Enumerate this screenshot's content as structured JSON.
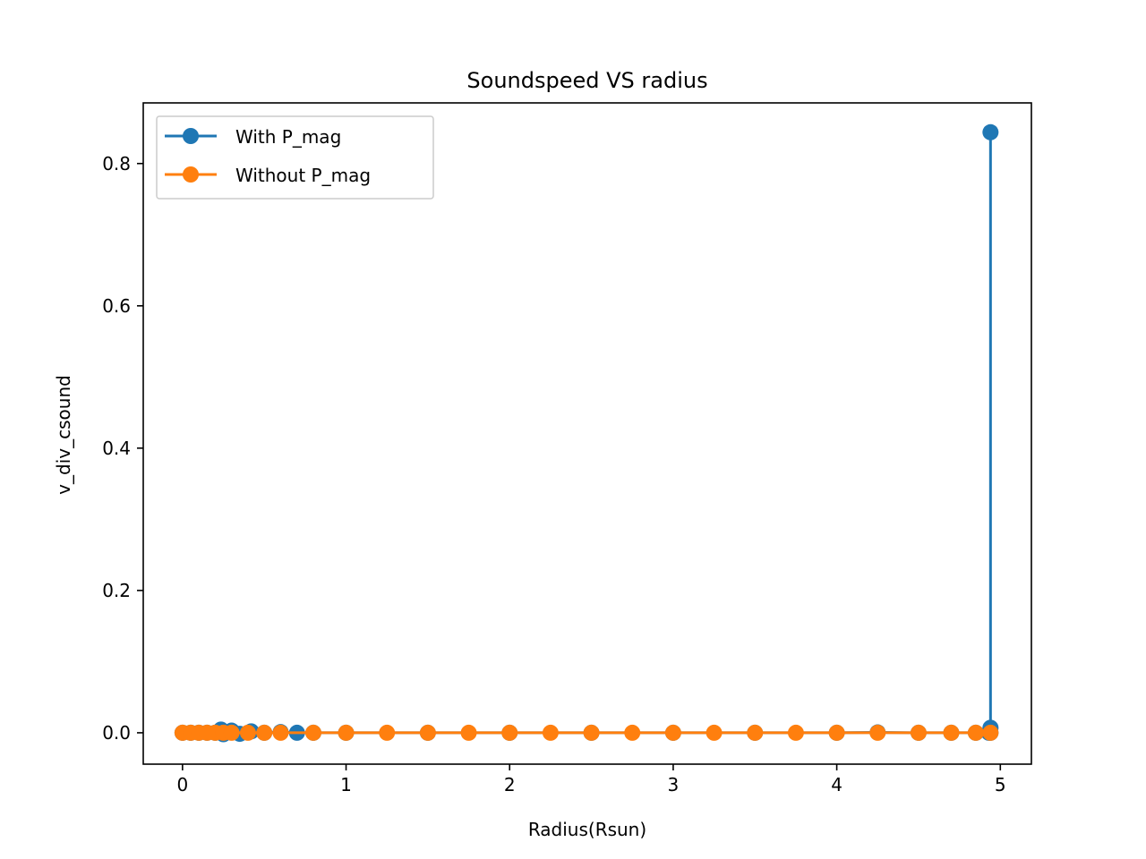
{
  "chart_data": {
    "type": "line",
    "title": "Soundspeed VS radius",
    "xlabel": "Radius(Rsun)",
    "ylabel": "v_div_csound",
    "xlim": [
      -0.24,
      5.19
    ],
    "ylim": [
      -0.0441,
      0.8852
    ],
    "x_ticks": [
      0,
      1,
      2,
      3,
      4,
      5
    ],
    "x_tick_labels": [
      "0",
      "1",
      "2",
      "3",
      "4",
      "5"
    ],
    "y_ticks": [
      0.0,
      0.2,
      0.4,
      0.6,
      0.8
    ],
    "y_tick_labels": [
      "0.0",
      "0.2",
      "0.4",
      "0.6",
      "0.8"
    ],
    "grid": false,
    "legend_position": "upper-left",
    "series": [
      {
        "name": "With P_mag",
        "color": "#1f77b4",
        "marker": "circle",
        "x": [
          0.0,
          0.05,
          0.1,
          0.15,
          0.2,
          0.235,
          0.25,
          0.3,
          0.35,
          0.42,
          0.5,
          0.6,
          0.7,
          0.8,
          1.0,
          1.5,
          2.0,
          2.5,
          3.0,
          3.5,
          4.0,
          4.25,
          4.5,
          4.7,
          4.85,
          4.93,
          4.94,
          4.94,
          4.94
        ],
        "y": [
          0.0,
          0.0,
          0.0,
          0.0,
          0.0,
          0.0045,
          -0.002,
          0.003,
          -0.0015,
          0.002,
          0.0,
          0.001,
          0.0,
          0.0,
          0.0,
          0.0,
          0.0,
          0.0,
          0.0,
          0.0,
          0.0,
          0.0005,
          0.0,
          0.0,
          0.0,
          0.0,
          0.007,
          0.844,
          0.0
        ]
      },
      {
        "name": "Without P_mag",
        "color": "#ff7f0e",
        "marker": "circle",
        "x": [
          0.0,
          0.05,
          0.1,
          0.15,
          0.2,
          0.25,
          0.3,
          0.4,
          0.5,
          0.6,
          0.8,
          1.0,
          1.25,
          1.5,
          1.75,
          2.0,
          2.25,
          2.5,
          2.75,
          3.0,
          3.25,
          3.5,
          3.75,
          4.0,
          4.25,
          4.5,
          4.7,
          4.85,
          4.94
        ],
        "y": [
          0,
          0,
          0,
          0,
          0,
          0,
          0,
          0,
          0,
          0,
          0,
          0,
          0,
          0,
          0,
          0,
          0,
          0,
          0,
          0,
          0,
          0,
          0,
          0,
          0,
          0,
          0,
          0,
          0
        ]
      }
    ]
  }
}
